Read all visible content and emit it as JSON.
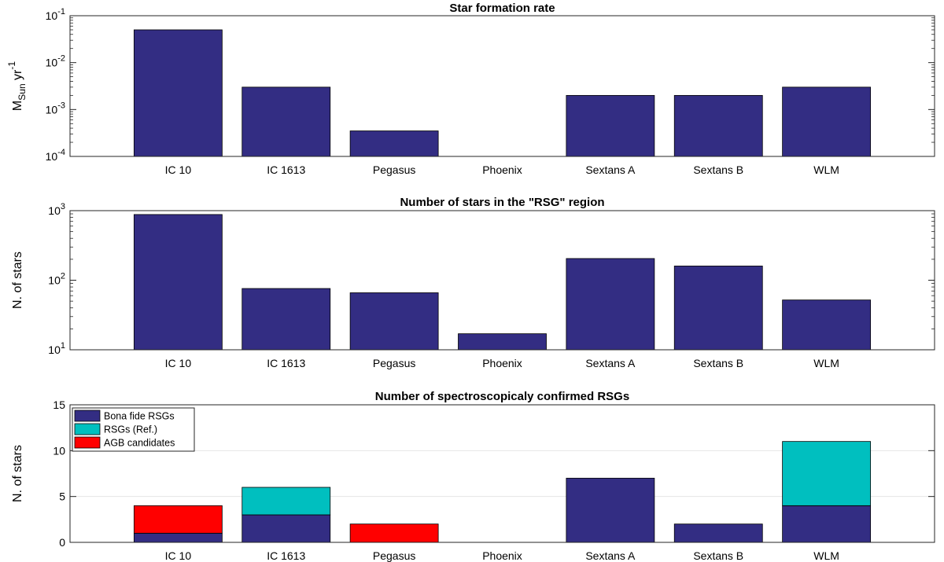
{
  "chart_data": [
    {
      "type": "bar",
      "scale": "log",
      "title": "Star formation rate",
      "ylabel_main": "M",
      "ylabel_sub": "Sun",
      "ylabel_unit": " yr",
      "ylabel_exp": "-1",
      "categories": [
        "IC 10",
        "IC 1613",
        "Pegasus",
        "Phoenix",
        "Sextans A",
        "Sextans B",
        "WLM"
      ],
      "values": [
        0.05,
        0.003,
        0.00035,
        null,
        0.002,
        0.002,
        0.003
      ],
      "ylim": [
        0.0001,
        0.1
      ],
      "yticks": [
        {
          "value": 0.0001,
          "base": "10",
          "exp": "-4"
        },
        {
          "value": 0.001,
          "base": "10",
          "exp": "-3"
        },
        {
          "value": 0.01,
          "base": "10",
          "exp": "-2"
        },
        {
          "value": 0.1,
          "base": "10",
          "exp": "-1"
        }
      ],
      "color": "#332d83"
    },
    {
      "type": "bar",
      "scale": "log",
      "title": "Number of stars in the \"RSG\" region",
      "ylabel": "N. of stars",
      "categories": [
        "IC 10",
        "IC 1613",
        "Pegasus",
        "Phoenix",
        "Sextans A",
        "Sextans B",
        "WLM"
      ],
      "values": [
        880,
        76,
        66,
        17,
        205,
        160,
        52
      ],
      "ylim": [
        10,
        1000
      ],
      "yticks": [
        {
          "value": 10,
          "base": "10",
          "exp": "1"
        },
        {
          "value": 100,
          "base": "10",
          "exp": "2"
        },
        {
          "value": 1000,
          "base": "10",
          "exp": "3"
        }
      ],
      "color": "#332d83"
    },
    {
      "type": "bar",
      "stacked": true,
      "scale": "linear",
      "title": "Number of spectroscopicaly confirmed RSGs",
      "ylabel": "N. of stars",
      "categories": [
        "IC 10",
        "IC 1613",
        "Pegasus",
        "Phoenix",
        "Sextans A",
        "Sextans B",
        "WLM"
      ],
      "series": [
        {
          "name": "Bona fide RSGs",
          "color": "#332d83",
          "values": [
            1,
            3,
            0,
            0,
            7,
            2,
            4
          ]
        },
        {
          "name": "RSGs (Ref.)",
          "color": "#00bfbf",
          "values": [
            0,
            3,
            0,
            0,
            0,
            0,
            7
          ]
        },
        {
          "name": "AGB candidates",
          "color": "#ff0000",
          "values": [
            3,
            0,
            2,
            0,
            0,
            0,
            0
          ]
        }
      ],
      "ylim": [
        0,
        15
      ],
      "yticks": [
        {
          "value": 0,
          "label": "0"
        },
        {
          "value": 5,
          "label": "5"
        },
        {
          "value": 10,
          "label": "10"
        },
        {
          "value": 15,
          "label": "15"
        }
      ],
      "grid": "horizontal",
      "legend": "top-left"
    }
  ]
}
